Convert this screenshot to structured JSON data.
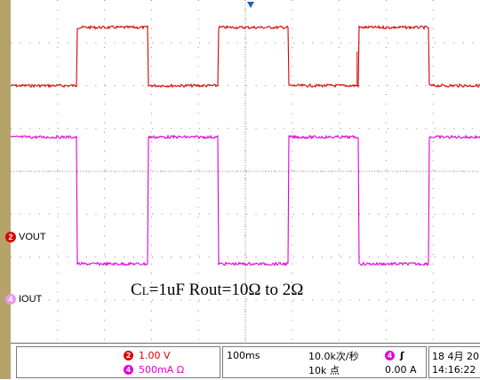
{
  "colors": {
    "background": "#ffffff",
    "grid": "#8a8a8a",
    "left_border": "#b5a36a",
    "ch2": "#d90000",
    "ch4": "#e000d8",
    "trigger_marker": "#2060c0"
  },
  "channels": {
    "ch2": {
      "badge": "2",
      "label": "VOUT"
    },
    "ch4": {
      "badge": "4",
      "label": "IOUT"
    }
  },
  "annotation": {
    "c": "C",
    "l": "L",
    "text": "=1uF Rout=10Ω to 2Ω"
  },
  "status": {
    "ch2_badge": "2",
    "ch2_scale": "1.00 V",
    "ch4_badge": "4",
    "ch4_scale": "500mA Ω",
    "timebase": "100ms",
    "sample_rate": "10.0k次/秒",
    "record_length": "10k 点",
    "trigger_badge": "4",
    "trigger_slope": "ʃ",
    "trigger_level": "0.00 A",
    "date": "18 4月  20",
    "time": "14:16:22"
  },
  "waveform": {
    "period_divisions": 3.0,
    "duty_high_fraction": 0.5,
    "ch2_high_level": 0.92,
    "ch2_low_level": 0.75,
    "ch4_high_level": 0.6,
    "ch4_low_level": 0.23,
    "ch2_spike": 0.85
  },
  "icons": {
    "trigger_marker": "trigger-position-icon"
  }
}
